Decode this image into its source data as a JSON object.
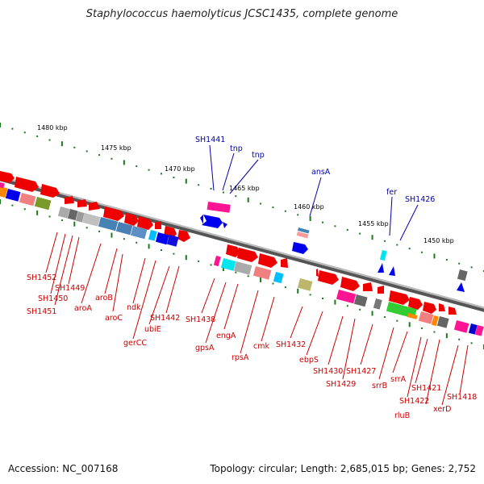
{
  "title": "Staphylococcus haemolyticus JCSC1435, complete genome",
  "footer": {
    "accession": "Accession: NC_007168",
    "summary": "Topology: circular; Length: 2,685,015 bp; Genes: 2,752"
  },
  "scale_labels": [
    "1480 kbp",
    "1475 kbp",
    "1470 kbp",
    "1465 kbp",
    "1460 kbp",
    "1455 kbp",
    "1450 kbp"
  ],
  "upper_labels": [
    "SH1441",
    "tnp",
    "tnp",
    "ansA",
    "fer",
    "SH1426"
  ],
  "lower_labels": [
    "SH1452",
    "SH1449",
    "SH1450",
    "SH1451",
    "aroA",
    "aroB",
    "aroC",
    "ndk",
    "gerCC",
    "ubiE",
    "SH1442",
    "SH1438",
    "gpsA",
    "engA",
    "rpsA",
    "cmk",
    "SH1432",
    "ebpS",
    "SH1430",
    "SH1429",
    "SH1427",
    "srrB",
    "srrA",
    "SH1421",
    "SH1422",
    "rluB",
    "xerD",
    "SH1418"
  ],
  "colors": {
    "forward_gene": "#ff0000",
    "label_red": "#cc0000",
    "label_blue": "#0000aa",
    "scale_tick": "#1a7a1a"
  }
}
